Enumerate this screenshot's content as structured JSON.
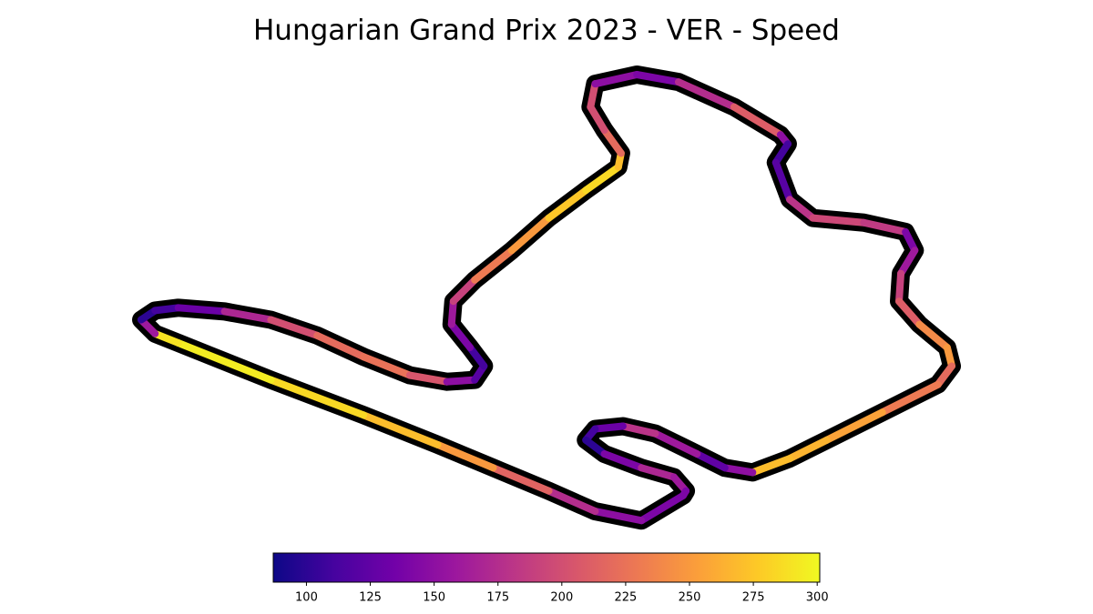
{
  "chart_data": {
    "type": "track",
    "title": "Hungarian Grand Prix 2023 - VER - Speed",
    "x": [
      745,
      700,
      650,
      600,
      540,
      480,
      400,
      300,
      200,
      175,
      160,
      175,
      200,
      250,
      300,
      350,
      400,
      450,
      490,
      520,
      530,
      515,
      495,
      497,
      520,
      560,
      600,
      640,
      675,
      678,
      660,
      645,
      650,
      695,
      740,
      800,
      850,
      858,
      845,
      860,
      885,
      940,
      985,
      995,
      980,
      978,
      1000,
      1030,
      1035,
      1020,
      960,
      900,
      860,
      820,
      790,
      760,
      715,
      680,
      650,
      640,
      660,
      700,
      735,
      748
    ],
    "y": [
      545,
      572,
      562,
      540,
      515,
      490,
      458,
      420,
      380,
      370,
      355,
      345,
      342,
      346,
      355,
      372,
      395,
      415,
      422,
      420,
      405,
      385,
      360,
      335,
      312,
      280,
      245,
      215,
      190,
      175,
      150,
      125,
      100,
      90,
      98,
      125,
      155,
      165,
      185,
      225,
      245,
      250,
      260,
      280,
      305,
      335,
      360,
      385,
      405,
      425,
      455,
      485,
      505,
      520,
      515,
      500,
      478,
      470,
      473,
      485,
      500,
      515,
      525,
      540
    ],
    "values": [
      140,
      150,
      175,
      215,
      250,
      270,
      285,
      295,
      290,
      160,
      100,
      110,
      130,
      170,
      200,
      220,
      225,
      205,
      150,
      120,
      110,
      140,
      160,
      190,
      230,
      250,
      275,
      285,
      270,
      220,
      200,
      200,
      150,
      140,
      175,
      210,
      150,
      110,
      120,
      180,
      195,
      185,
      140,
      160,
      190,
      210,
      240,
      250,
      220,
      230,
      255,
      265,
      270,
      150,
      125,
      160,
      180,
      130,
      110,
      100,
      140,
      170,
      160,
      140
    ],
    "colormap": [
      "#0d0887",
      "#46039f",
      "#7201a8",
      "#9c179e",
      "#bd3786",
      "#d8576b",
      "#ed7953",
      "#fb9f3a",
      "#fdca26",
      "#f0f921"
    ],
    "clim": [
      87,
      301
    ],
    "cticks": [
      100,
      125,
      150,
      175,
      200,
      225,
      250,
      275,
      300
    ]
  }
}
